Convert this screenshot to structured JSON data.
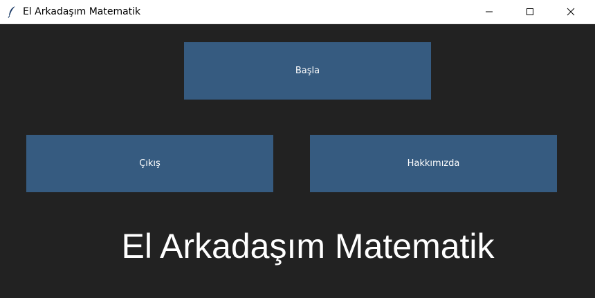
{
  "window": {
    "title": "El Arkadaşım Matematik",
    "controls": {
      "minimize_icon": "minimize-icon",
      "maximize_icon": "maximize-icon",
      "close_icon": "close-icon"
    },
    "app_icon": "feather-icon"
  },
  "buttons": {
    "start_label": "Başla",
    "exit_label": "Çıkış",
    "about_label": "Hakkımızda"
  },
  "main": {
    "heading": "El Arkadaşım Matematik"
  },
  "colors": {
    "background": "#222222",
    "button": "#365b80",
    "text": "#ffffff"
  }
}
